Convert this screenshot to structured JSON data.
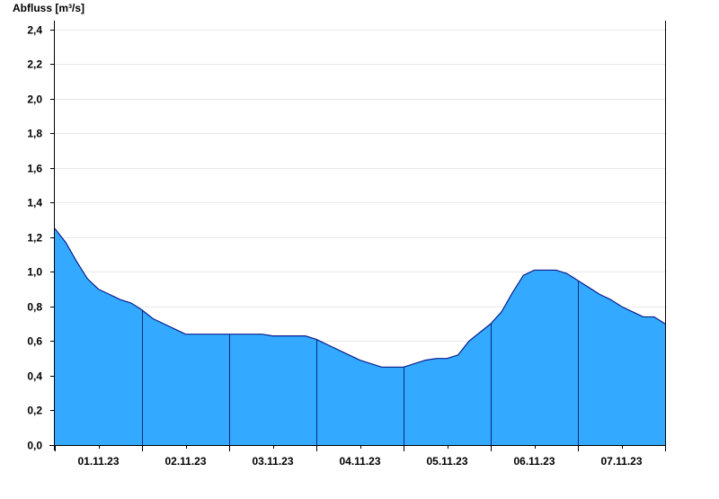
{
  "chart_data": {
    "type": "area",
    "title": "",
    "ylabel": "Abfluss [m³/s]",
    "xlabel": "",
    "ylim": [
      0,
      2.45
    ],
    "y_ticks": [
      0,
      0.2,
      0.4,
      0.6,
      0.8,
      1.0,
      1.2,
      1.4,
      1.6,
      1.8,
      2.0,
      2.2,
      2.4
    ],
    "y_tick_labels": [
      "0,0",
      "0,2",
      "0,4",
      "0,6",
      "0,8",
      "1,0",
      "1,2",
      "1,4",
      "1,6",
      "1,8",
      "2,0",
      "2,2",
      "2,4"
    ],
    "x_tick_labels": [
      "01.11.23",
      "02.11.23",
      "03.11.23",
      "04.11.23",
      "05.11.23",
      "06.11.23",
      "07.11.23"
    ],
    "x_range": [
      "2023-11-01 00:00",
      "2023-11-08 00:00"
    ],
    "grid": "horizontal",
    "fill_color": "#33aaff",
    "line_color": "#0a1e8c",
    "series": [
      {
        "x": [
          "2023-11-01 00:00",
          "2023-11-01 03:00",
          "2023-11-01 06:00",
          "2023-11-01 09:00",
          "2023-11-01 12:00",
          "2023-11-01 15:00",
          "2023-11-01 18:00",
          "2023-11-01 21:00",
          "2023-11-02 00:00",
          "2023-11-02 03:00",
          "2023-11-02 06:00",
          "2023-11-02 09:00",
          "2023-11-02 12:00",
          "2023-11-02 15:00",
          "2023-11-02 18:00",
          "2023-11-02 21:00",
          "2023-11-03 00:00",
          "2023-11-03 03:00",
          "2023-11-03 06:00",
          "2023-11-03 09:00",
          "2023-11-03 12:00",
          "2023-11-03 15:00",
          "2023-11-03 18:00",
          "2023-11-03 21:00",
          "2023-11-04 00:00",
          "2023-11-04 03:00",
          "2023-11-04 06:00",
          "2023-11-04 09:00",
          "2023-11-04 12:00",
          "2023-11-04 15:00",
          "2023-11-04 18:00",
          "2023-11-04 21:00",
          "2023-11-05 00:00",
          "2023-11-05 03:00",
          "2023-11-05 06:00",
          "2023-11-05 09:00",
          "2023-11-05 12:00",
          "2023-11-05 15:00",
          "2023-11-05 18:00",
          "2023-11-05 21:00",
          "2023-11-06 00:00",
          "2023-11-06 03:00",
          "2023-11-06 06:00",
          "2023-11-06 09:00",
          "2023-11-06 12:00",
          "2023-11-06 15:00",
          "2023-11-06 18:00",
          "2023-11-06 21:00",
          "2023-11-07 00:00",
          "2023-11-07 03:00",
          "2023-11-07 06:00",
          "2023-11-07 09:00",
          "2023-11-07 12:00",
          "2023-11-07 15:00",
          "2023-11-07 18:00",
          "2023-11-07 21:00",
          "2023-11-08 00:00"
        ],
        "y": [
          1.25,
          1.17,
          1.06,
          0.96,
          0.9,
          0.87,
          0.84,
          0.82,
          0.78,
          0.73,
          0.7,
          0.67,
          0.64,
          0.64,
          0.64,
          0.64,
          0.64,
          0.64,
          0.64,
          0.64,
          0.63,
          0.63,
          0.63,
          0.63,
          0.61,
          0.58,
          0.55,
          0.52,
          0.49,
          0.47,
          0.45,
          0.45,
          0.45,
          0.47,
          0.49,
          0.5,
          0.5,
          0.52,
          0.6,
          0.65,
          0.7,
          0.77,
          0.88,
          0.98,
          1.01,
          1.01,
          1.01,
          0.99,
          0.95,
          0.91,
          0.87,
          0.84,
          0.8,
          0.77,
          0.74,
          0.74,
          0.7
        ]
      }
    ]
  }
}
